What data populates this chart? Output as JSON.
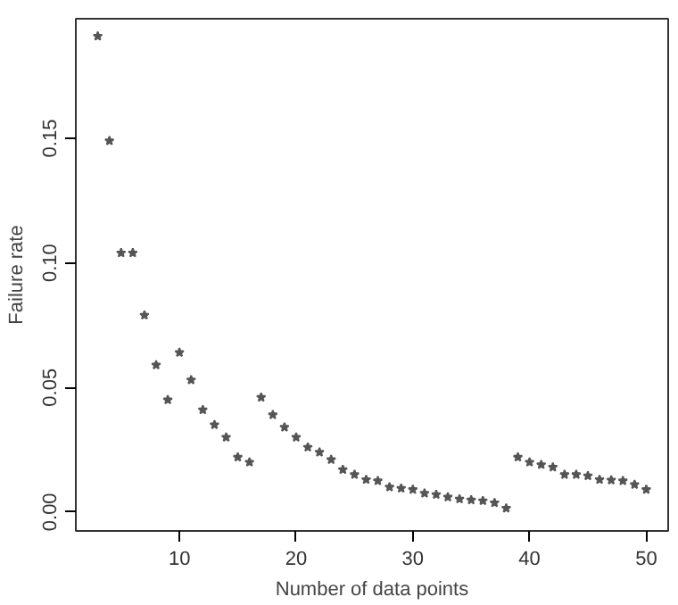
{
  "chart_data": {
    "type": "scatter",
    "xlabel": "Number of data points",
    "ylabel": "Failure rate",
    "x": [
      3,
      4,
      5,
      6,
      7,
      8,
      9,
      10,
      11,
      12,
      13,
      14,
      15,
      16,
      17,
      18,
      19,
      20,
      21,
      22,
      23,
      24,
      25,
      26,
      27,
      28,
      29,
      30,
      31,
      32,
      33,
      34,
      35,
      36,
      37,
      38,
      39,
      40,
      41,
      42,
      43,
      44,
      45,
      46,
      47,
      48,
      49,
      50
    ],
    "series": [
      {
        "color": "#555555",
        "values": [
          0.191,
          0.149,
          0.104,
          0.104,
          0.079,
          0.059,
          0.045,
          0.064,
          0.053,
          0.041,
          0.035,
          0.03,
          0.022,
          0.02,
          0.046,
          0.039,
          0.034,
          0.03,
          0.026,
          0.024,
          0.021,
          0.017,
          0.015,
          0.013,
          0.0125,
          0.01,
          0.0095,
          0.009,
          0.0075,
          0.007,
          0.006,
          0.0052,
          0.0048,
          0.0045,
          0.0037,
          0.0015,
          0.022,
          0.02,
          0.019,
          0.018,
          0.015,
          0.015,
          0.0145,
          0.013,
          0.0128,
          0.0125,
          0.011,
          0.009
        ]
      }
    ],
    "xlim": [
      1.12,
      51.88
    ],
    "ylim": [
      -0.0076,
      0.198
    ],
    "xticks": [
      10,
      20,
      30,
      40,
      50
    ],
    "yticks": [
      {
        "value": 0,
        "label": "0.00"
      },
      {
        "value": 0.05,
        "label": "0.05"
      },
      {
        "value": 0.1,
        "label": "0.10"
      },
      {
        "value": 0.15,
        "label": "0.15"
      }
    ],
    "grid": false,
    "marker": "star"
  }
}
